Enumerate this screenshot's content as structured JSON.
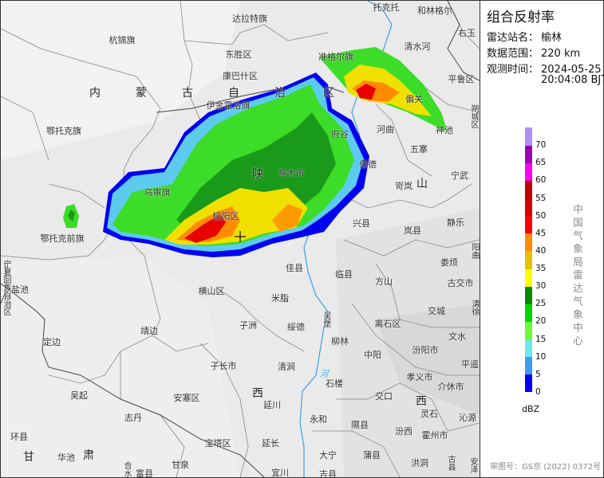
{
  "panel": {
    "title": "组合反射率",
    "station_label": "雷达站名：",
    "station": "榆林",
    "range_label": "数据范围：",
    "range": "220 km",
    "time_label": "观测时间：",
    "date": "2024-05-25",
    "time": "20:04:08 BJT"
  },
  "legend": {
    "unit": "dBZ",
    "ticks": [
      "0",
      "5",
      "10",
      "15",
      "20",
      "25",
      "30",
      "35",
      "40",
      "45",
      "50",
      "55",
      "60",
      "65",
      "70"
    ],
    "colors": [
      "#0000f6",
      "#3c9cf2",
      "#6ae8ee",
      "#6cfa3c",
      "#00d800",
      "#008a00",
      "#ffff00",
      "#e6c000",
      "#ff8c00",
      "#ff0000",
      "#d60000",
      "#c00000",
      "#ff00f0",
      "#9a00b4",
      "#ad90f0"
    ]
  },
  "organization": "中国气象局雷达气象中心",
  "approval": "审图号：GS京 (2022) 0372号",
  "map": {
    "station_marker": "radar-station-cross-icon",
    "labels": [
      "杭锦旗",
      "内",
      "蒙",
      "古",
      "自",
      "治",
      "区",
      "达拉特旗",
      "东胜区",
      "康巴什区",
      "伊金霍洛旗",
      "托克托",
      "和林格尔",
      "右玉",
      "清水河",
      "准格尔旗",
      "平鲁区",
      "偏关",
      "朔城区",
      "河曲",
      "府谷",
      "神池",
      "五寨",
      "鄂托克旗",
      "乌审旗",
      "鄂托克前旗",
      "榆阳区",
      "宁夏回族自治区",
      "盐池",
      "横山区",
      "保德",
      "陕",
      "神木市",
      "岢岚",
      "山",
      "宁武",
      "兴县",
      "静乐",
      "岚县",
      "阳曲",
      "佳县",
      "临县",
      "娄烦",
      "方山",
      "古交市",
      "米脂",
      "交城",
      "清徐",
      "吴堡",
      "定边",
      "靖边",
      "子长市",
      "吴起",
      "安塞区",
      "志丹",
      "环县",
      "宝塔区",
      "甘",
      "华池",
      "肃",
      "甘泉",
      "合水",
      "富县",
      "子洲",
      "绥德",
      "离石区",
      "柳林",
      "文水",
      "汾阳市",
      "中阳",
      "清涧",
      "平遥",
      "河",
      "石楼",
      "孝义市",
      "介休市",
      "西",
      "交口",
      "西",
      "延川",
      "永和",
      "灵石",
      "沁源",
      "隰县",
      "汾西",
      "霍州市",
      "延长",
      "大宁",
      "蒲县",
      "洪洞",
      "古县",
      "安泽",
      "宜川",
      "吉县"
    ]
  }
}
